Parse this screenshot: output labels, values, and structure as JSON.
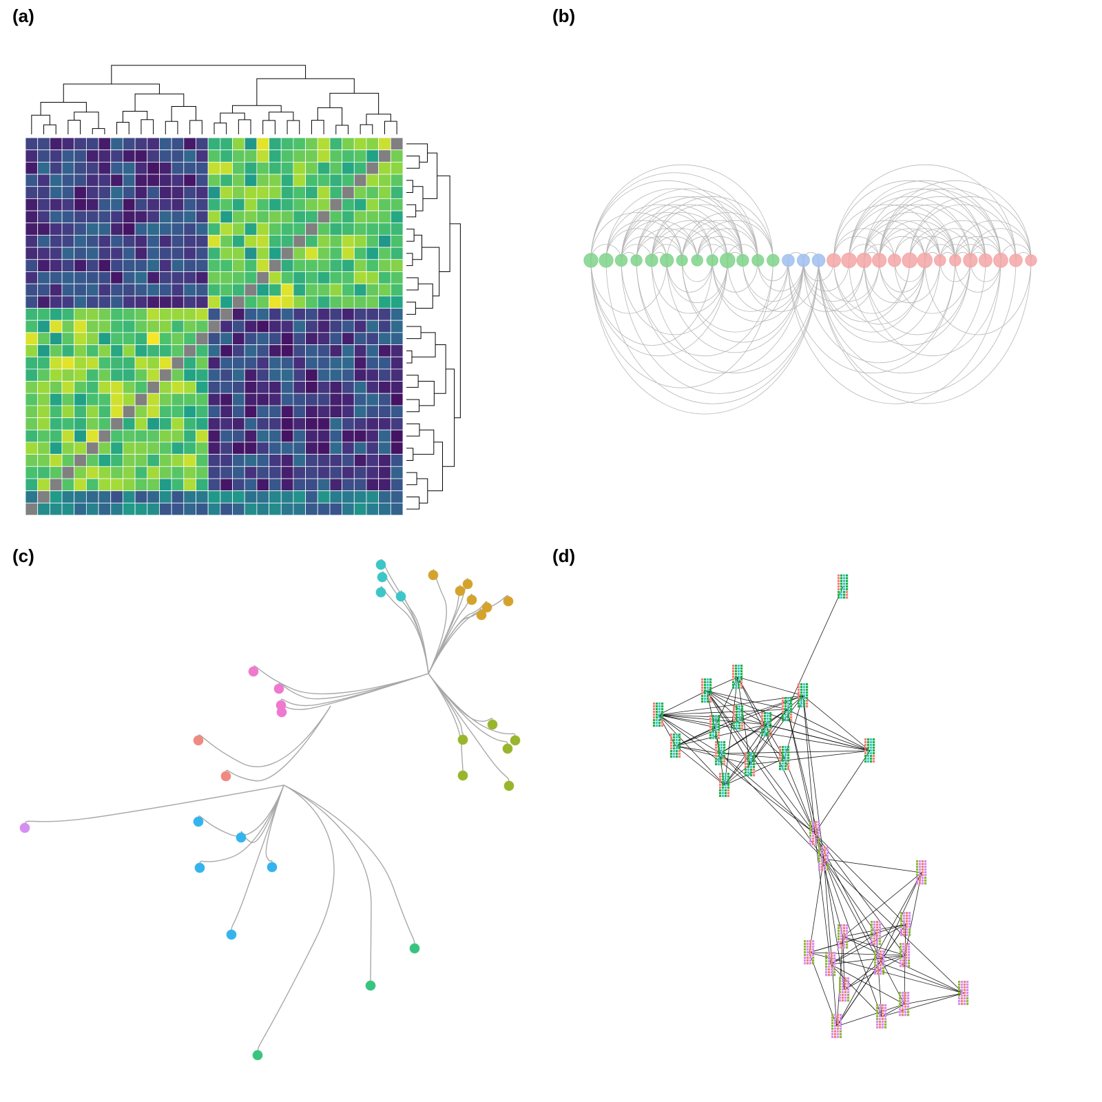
{
  "panels": [
    {
      "label": "(a)"
    },
    {
      "label": "(b)"
    },
    {
      "label": "(c)"
    },
    {
      "label": "(d)"
    }
  ],
  "colors": {
    "viridis": [
      "#440154",
      "#46337e",
      "#365c8d",
      "#277f8e",
      "#1fa187",
      "#4ac16d",
      "#a0da39",
      "#fde725"
    ],
    "diagonal": "#808080",
    "dendrogram": "#000000",
    "arc": "#b5b5b5",
    "group_green": "#7fd48a",
    "group_blue": "#9fbff0",
    "group_red": "#f4a6a6",
    "tree_branch": "#a8a8a8",
    "cluster_cyan": "#3cc6c8",
    "cluster_gold": "#d4a32c",
    "cluster_pink": "#ef79cf",
    "cluster_salmon": "#ef8a80",
    "cluster_olive": "#99b52c",
    "cluster_violet": "#d58ff0",
    "cluster_sky": "#33b4ee",
    "cluster_emerald": "#38c47f",
    "glyph_colors": [
      "#f08078",
      "#1fb24a",
      "#3cc6c8",
      "#d88cf0",
      "#8fb838"
    ]
  },
  "heatmap": {
    "size": 31,
    "block_split": 15,
    "levels": {
      "within_cluster": [
        0.75,
        1.0
      ],
      "between_cluster": [
        0.05,
        0.35
      ]
    }
  },
  "arc_diagram": {
    "groups": [
      {
        "color_key": "group_green",
        "count": 13
      },
      {
        "color_key": "group_blue",
        "count": 3
      },
      {
        "color_key": "group_red",
        "count": 14
      }
    ]
  },
  "tree": {
    "clusters": [
      {
        "color_key": "cluster_cyan",
        "count": 4
      },
      {
        "color_key": "cluster_gold",
        "count": 7
      },
      {
        "color_key": "cluster_pink",
        "count": 4
      },
      {
        "color_key": "cluster_salmon",
        "count": 2
      },
      {
        "color_key": "cluster_olive",
        "count": 6
      },
      {
        "color_key": "cluster_violet",
        "count": 1
      },
      {
        "color_key": "cluster_sky",
        "count": 5
      },
      {
        "color_key": "cluster_emerald",
        "count": 3
      }
    ]
  },
  "network": {
    "node_count": 30,
    "upper_cluster_nodes": 13,
    "lower_cluster_nodes": 14,
    "bridge_nodes": 2,
    "isolated_top_nodes": 1
  }
}
